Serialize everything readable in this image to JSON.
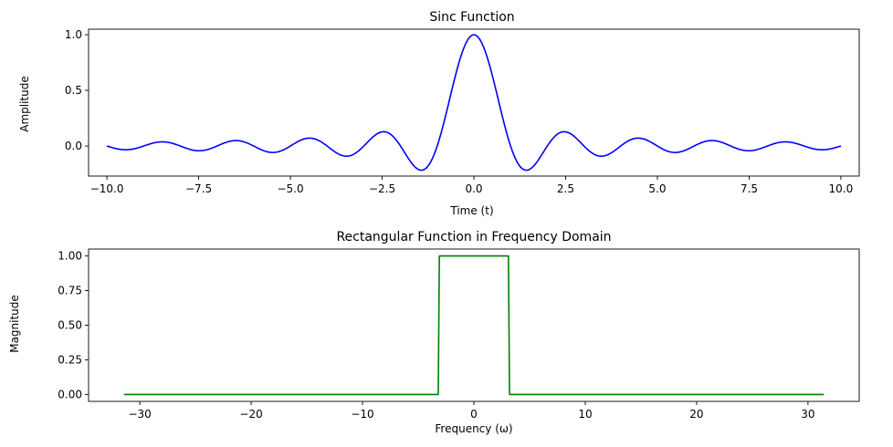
{
  "chart_data": [
    {
      "type": "line",
      "title": "Sinc Function",
      "xlabel": "Time (t)",
      "ylabel": "Amplitude",
      "xlim": [
        -10.5,
        10.5
      ],
      "ylim": [
        -0.27,
        1.05
      ],
      "xticks": [
        -10.0,
        -7.5,
        -5.0,
        -2.5,
        0.0,
        2.5,
        5.0,
        7.5,
        10.0
      ],
      "xtick_labels": [
        "−10.0",
        "−7.5",
        "−5.0",
        "−2.5",
        "0.0",
        "2.5",
        "5.0",
        "7.5",
        "10.0"
      ],
      "yticks": [
        0.0,
        0.5,
        1.0
      ],
      "ytick_labels": [
        "0.0",
        "0.5",
        "1.0"
      ],
      "grid": false,
      "series": [
        {
          "color": "#0000ff",
          "function": "sinc",
          "x_range": [
            -10,
            10
          ],
          "num_points": 1000
        }
      ]
    },
    {
      "type": "line",
      "title": "Rectangular Function in Frequency Domain",
      "xlabel": "Frequency (ω)",
      "ylabel": "Magnitude",
      "xlim": [
        -34.6,
        34.6
      ],
      "ylim": [
        -0.05,
        1.05
      ],
      "xticks": [
        -30,
        -20,
        -10,
        0,
        10,
        20,
        30
      ],
      "xtick_labels": [
        "−30",
        "−20",
        "−10",
        "0",
        "10",
        "20",
        "30"
      ],
      "yticks": [
        0.0,
        0.25,
        0.5,
        0.75,
        1.0
      ],
      "ytick_labels": [
        "0.00",
        "0.25",
        "0.50",
        "0.75",
        "1.00"
      ],
      "grid": false,
      "series": [
        {
          "color": "#008000",
          "x": [
            -31.42,
            -3.2,
            -3.1,
            3.1,
            3.2,
            31.42
          ],
          "y": [
            0,
            0,
            1,
            1,
            0,
            0
          ]
        }
      ]
    }
  ]
}
